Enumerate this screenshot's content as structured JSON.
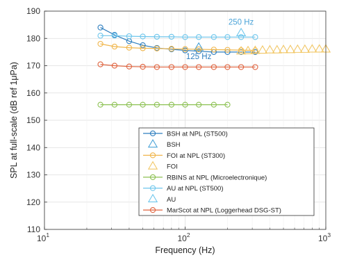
{
  "chart_data": {
    "type": "line",
    "title": "",
    "xlabel": "Frequency (Hz)",
    "ylabel": "SPL at full-scale (dB ref 1μPa)",
    "xscale": "log",
    "xlim": [
      10,
      1000
    ],
    "ylim": [
      110,
      190
    ],
    "xticks": [
      {
        "value": 10,
        "base": "10",
        "exp": "1"
      },
      {
        "value": 100,
        "base": "10",
        "exp": "2"
      },
      {
        "value": 1000,
        "base": "10",
        "exp": "3"
      }
    ],
    "yticks": [
      110,
      120,
      130,
      140,
      150,
      160,
      170,
      180,
      190
    ],
    "grid": true,
    "legend_position": "bottom-right",
    "series": [
      {
        "name": "BSH at NPL (ST500)",
        "color": "#2f7fbf",
        "marker": "circle",
        "line": true,
        "x": [
          25,
          31.5,
          40,
          50,
          63,
          80,
          100,
          125,
          160,
          200,
          250,
          315
        ],
        "y": [
          184,
          181.3,
          179,
          177.5,
          176.5,
          176,
          175.6,
          175.3,
          175,
          175,
          175,
          175
        ]
      },
      {
        "name": "BSH",
        "color": "#4aa3d8",
        "marker": "triangle",
        "line": false,
        "x": [
          125
        ],
        "y": [
          176.7
        ]
      },
      {
        "name": "FOI at NPL (ST300)",
        "color": "#f0b64c",
        "marker": "circle",
        "line": true,
        "x": [
          25,
          31.5,
          40,
          50,
          63,
          80,
          100,
          125,
          160,
          200,
          250,
          315
        ],
        "y": [
          178,
          177,
          176.6,
          176.4,
          176.3,
          176.2,
          176.1,
          176,
          175.9,
          175.8,
          175.7,
          175.6
        ]
      },
      {
        "name": "FOI",
        "color": "#f2c766",
        "marker": "triangle",
        "line": false,
        "x": [
          250,
          280,
          315,
          355,
          400,
          450,
          500,
          560,
          630,
          710,
          800,
          900,
          1000
        ],
        "y": [
          175.3,
          175.4,
          175.5,
          175.6,
          175.7,
          175.7,
          175.8,
          175.8,
          175.9,
          175.9,
          176,
          176,
          176
        ]
      },
      {
        "name": "RBINS at NPL (Microelectronique)",
        "color": "#8cc152",
        "marker": "circle",
        "line": true,
        "x": [
          25,
          31.5,
          40,
          50,
          63,
          80,
          100,
          125,
          160,
          200
        ],
        "y": [
          155.7,
          155.7,
          155.7,
          155.7,
          155.7,
          155.7,
          155.7,
          155.7,
          155.7,
          155.7
        ]
      },
      {
        "name": "AU at NPL (ST500)",
        "color": "#6ec6ec",
        "marker": "circle",
        "line": true,
        "x": [
          25,
          31.5,
          40,
          50,
          63,
          80,
          100,
          125,
          160,
          200,
          250,
          315
        ],
        "y": [
          181,
          181,
          180.8,
          180.7,
          180.6,
          180.6,
          180.5,
          180.5,
          180.5,
          180.5,
          180.5,
          180.5
        ]
      },
      {
        "name": "AU",
        "color": "#6ec6ec",
        "marker": "triangle",
        "line": false,
        "x": [
          250
        ],
        "y": [
          182
        ]
      },
      {
        "name": "MarScot at NPL (Loggerhead DSG-ST)",
        "color": "#e0633e",
        "marker": "circle",
        "line": true,
        "x": [
          25,
          31.5,
          40,
          50,
          63,
          80,
          100,
          125,
          160,
          200,
          250,
          315
        ],
        "y": [
          170.5,
          170,
          169.7,
          169.6,
          169.5,
          169.5,
          169.5,
          169.5,
          169.5,
          169.5,
          169.5,
          169.5
        ]
      }
    ],
    "annotations": [
      {
        "text": "250 Hz",
        "x": 250,
        "y": 185,
        "color": "#4aa3d8"
      },
      {
        "text": "125 Hz",
        "x": 125,
        "y": 172.4,
        "color": "#2f7fbf"
      }
    ]
  }
}
